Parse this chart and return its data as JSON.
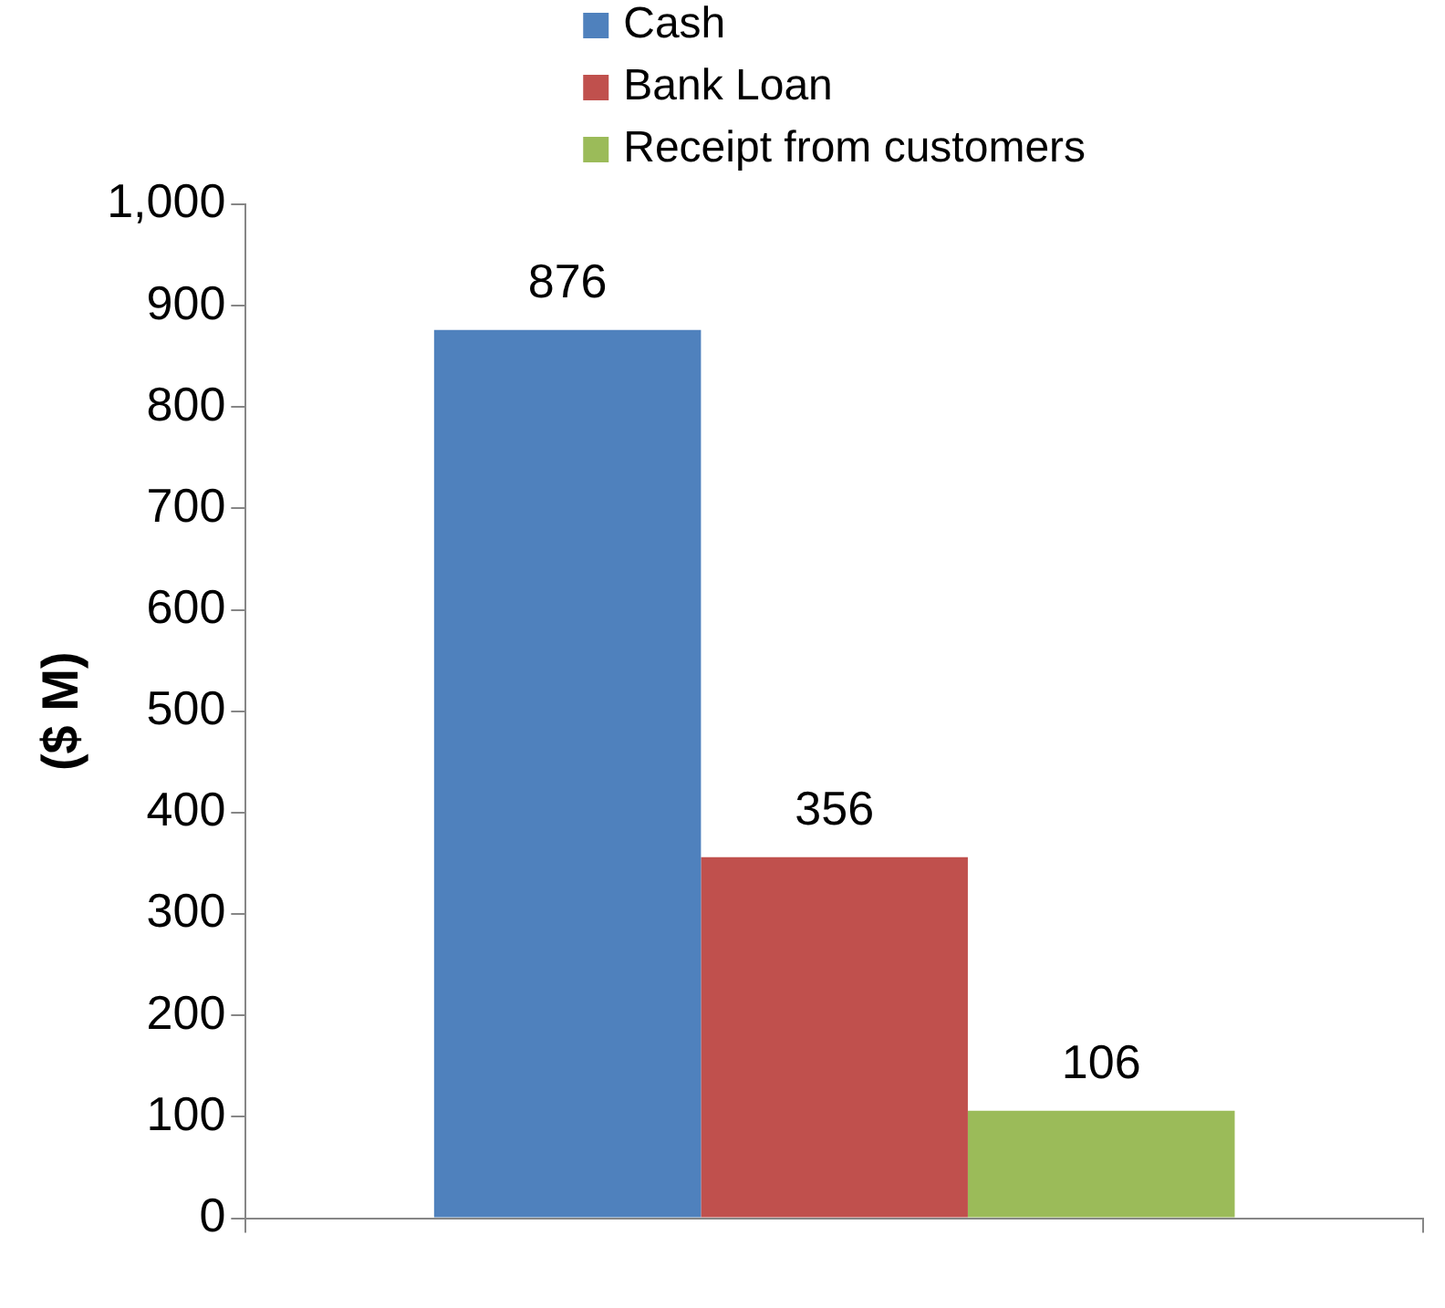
{
  "chart_data": {
    "type": "bar",
    "ylabel": "($ M)",
    "categories": [
      null
    ],
    "series": [
      {
        "name": "Cash",
        "color": "#4f81bd",
        "values": [
          876
        ]
      },
      {
        "name": "Bank Loan",
        "color": "#c0504d",
        "values": [
          356
        ]
      },
      {
        "name": "Receipt from customers",
        "color": "#9bbb59",
        "values": [
          106
        ]
      }
    ],
    "ylim": [
      0,
      1000
    ],
    "yticks": [
      0,
      100,
      200,
      300,
      400,
      500,
      600,
      700,
      800,
      900,
      {
        "value": 1000,
        "label": "1,000"
      }
    ],
    "grid": false,
    "legend": "top",
    "data_labels": true
  }
}
